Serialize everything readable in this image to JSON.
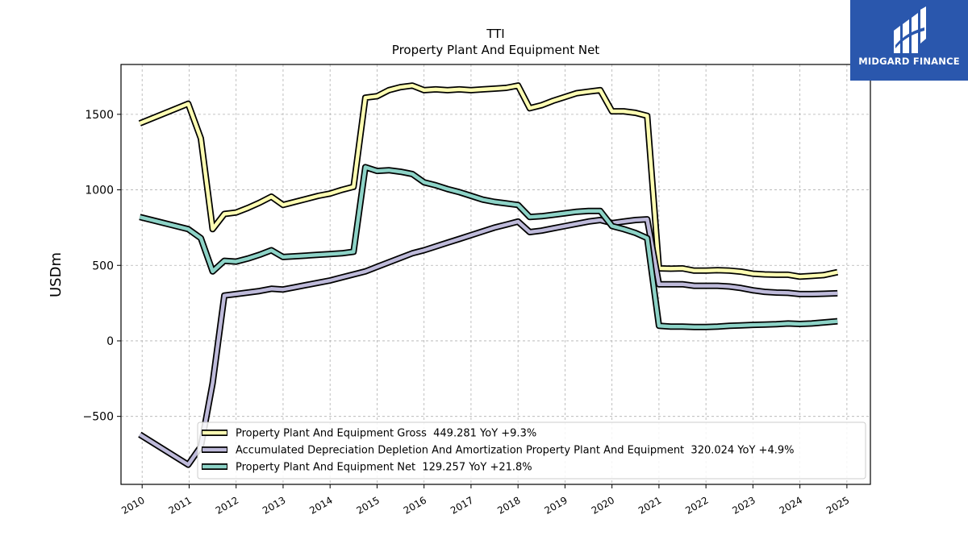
{
  "brand": {
    "name": "MIDGARD FINANCE",
    "bg_color": "#2a57ad"
  },
  "chart_data": {
    "type": "line",
    "title": "TTI",
    "subtitle": "Property Plant And Equipment Net",
    "ylabel": "USDm",
    "xlabel": "",
    "ylim": [
      -950,
      1830
    ],
    "yticks": [
      -500,
      0,
      500,
      1000,
      1500
    ],
    "ytick_labels": [
      "−500",
      "0",
      "500",
      "1000",
      "1500"
    ],
    "xlim": [
      2009.55,
      2025.5
    ],
    "xticks": [
      2010,
      2011,
      2012,
      2013,
      2014,
      2015,
      2016,
      2017,
      2018,
      2019,
      2020,
      2021,
      2022,
      2023,
      2024,
      2025
    ],
    "xtick_labels": [
      "2010",
      "2011",
      "2012",
      "2013",
      "2014",
      "2015",
      "2016",
      "2017",
      "2018",
      "2019",
      "2020",
      "2021",
      "2022",
      "2023",
      "2024",
      "2025"
    ],
    "grid": true,
    "legend_position": "lower center",
    "series": [
      {
        "name": "Property Plant And Equipment Gross",
        "legend_label": "Property Plant And Equipment Gross  449.281 YoY +9.3%",
        "color": "#ffffb3",
        "x": [
          2009.95,
          2010.98,
          2011.25,
          2011.5,
          2011.75,
          2012.0,
          2012.25,
          2012.5,
          2012.75,
          2013.0,
          2013.25,
          2013.5,
          2013.75,
          2014.0,
          2014.25,
          2014.5,
          2014.75,
          2015.0,
          2015.25,
          2015.5,
          2015.75,
          2016.0,
          2016.25,
          2016.5,
          2016.75,
          2017.0,
          2017.25,
          2017.5,
          2017.75,
          2018.0,
          2018.25,
          2018.5,
          2018.75,
          2019.0,
          2019.25,
          2019.5,
          2019.75,
          2020.0,
          2020.25,
          2020.5,
          2020.75,
          2021.0,
          2021.25,
          2021.5,
          2021.75,
          2022.0,
          2022.25,
          2022.5,
          2022.75,
          2023.0,
          2023.25,
          2023.5,
          2023.75,
          2024.0,
          2024.25,
          2024.5,
          2024.8
        ],
        "y": [
          1440,
          1570,
          1340,
          740,
          840,
          850,
          880,
          915,
          955,
          900,
          920,
          940,
          960,
          975,
          1000,
          1020,
          1610,
          1620,
          1660,
          1680,
          1690,
          1660,
          1665,
          1660,
          1665,
          1660,
          1665,
          1670,
          1675,
          1690,
          1540,
          1560,
          1590,
          1615,
          1640,
          1650,
          1660,
          1520,
          1520,
          1510,
          1490,
          480,
          478,
          480,
          465,
          465,
          468,
          465,
          458,
          445,
          440,
          438,
          438,
          425,
          430,
          435,
          455
        ]
      },
      {
        "name": "Accumulated Depreciation Depletion And Amortization Property Plant And Equipment",
        "legend_label": "Accumulated Depreciation Depletion And Amortization Property Plant And Equipment  320.024 YoY +4.9%",
        "color": "#bebada",
        "x": [
          2009.95,
          2010.98,
          2011.25,
          2011.5,
          2011.75,
          2012.0,
          2012.25,
          2012.5,
          2012.75,
          2013.0,
          2013.25,
          2013.5,
          2013.75,
          2014.0,
          2014.25,
          2014.5,
          2014.75,
          2015.0,
          2015.25,
          2015.5,
          2015.75,
          2016.0,
          2016.25,
          2016.5,
          2016.75,
          2017.0,
          2017.25,
          2017.5,
          2017.75,
          2018.0,
          2018.25,
          2018.5,
          2018.75,
          2019.0,
          2019.25,
          2019.5,
          2019.75,
          2020.0,
          2020.25,
          2020.5,
          2020.75,
          2021.0,
          2021.25,
          2021.5,
          2021.75,
          2022.0,
          2022.25,
          2022.5,
          2022.75,
          2023.0,
          2023.25,
          2023.5,
          2023.75,
          2024.0,
          2024.25,
          2024.5,
          2024.8
        ],
        "y": [
          -620,
          -820,
          -700,
          -280,
          300,
          310,
          320,
          330,
          345,
          340,
          355,
          370,
          385,
          400,
          420,
          440,
          460,
          490,
          520,
          550,
          580,
          600,
          625,
          650,
          675,
          700,
          725,
          750,
          770,
          790,
          720,
          730,
          745,
          760,
          775,
          790,
          800,
          780,
          790,
          800,
          805,
          375,
          375,
          375,
          365,
          365,
          365,
          360,
          350,
          335,
          325,
          320,
          318,
          310,
          310,
          312,
          315
        ]
      },
      {
        "name": "Property Plant And Equipment Net",
        "legend_label": "Property Plant And Equipment Net  129.257 YoY +21.8%",
        "color": "#8dd3c7",
        "x": [
          2009.95,
          2010.98,
          2011.25,
          2011.5,
          2011.75,
          2012.0,
          2012.25,
          2012.5,
          2012.75,
          2013.0,
          2013.25,
          2013.5,
          2013.75,
          2014.0,
          2014.25,
          2014.5,
          2014.75,
          2015.0,
          2015.25,
          2015.5,
          2015.75,
          2016.0,
          2016.25,
          2016.5,
          2016.75,
          2017.0,
          2017.25,
          2017.5,
          2017.75,
          2018.0,
          2018.25,
          2018.5,
          2018.75,
          2019.0,
          2019.25,
          2019.5,
          2019.75,
          2020.0,
          2020.25,
          2020.5,
          2020.75,
          2021.0,
          2021.25,
          2021.5,
          2021.75,
          2022.0,
          2022.25,
          2022.5,
          2022.75,
          2023.0,
          2023.25,
          2023.5,
          2023.75,
          2024.0,
          2024.25,
          2024.5,
          2024.8
        ],
        "y": [
          820,
          740,
          680,
          460,
          530,
          525,
          545,
          570,
          600,
          555,
          560,
          565,
          570,
          575,
          580,
          590,
          1150,
          1125,
          1130,
          1120,
          1105,
          1050,
          1030,
          1005,
          985,
          960,
          935,
          920,
          910,
          900,
          820,
          825,
          835,
          845,
          855,
          860,
          860,
          760,
          740,
          715,
          680,
          100,
          95,
          95,
          92,
          92,
          95,
          100,
          102,
          106,
          108,
          110,
          115,
          112,
          115,
          122,
          130
        ]
      }
    ]
  }
}
